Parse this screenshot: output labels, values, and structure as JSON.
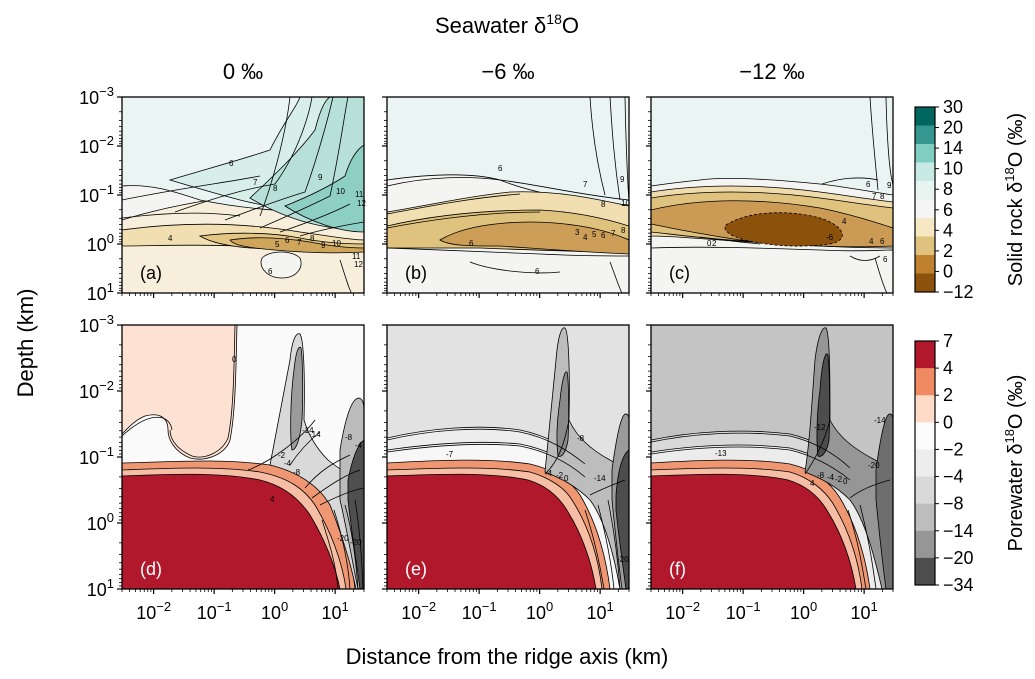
{
  "chart_data": {
    "type": "heatmap",
    "figure_title": "Seawater δ",
    "figure_title_sup": "18",
    "figure_title_tail": "O",
    "column_titles": [
      "0 ‰",
      "−6 ‰",
      "−12 ‰"
    ],
    "ylabel": "Depth (km)",
    "xlabel": "Distance from the ridge axis (km)",
    "x_scale": "log",
    "y_scale": "log",
    "y_inverted": true,
    "xlim": [
      0.003,
      30
    ],
    "ylim": [
      0.001,
      10
    ],
    "x_ticks": [
      0.01,
      0.1,
      1,
      10
    ],
    "x_tick_labels": [
      {
        "base": "10",
        "exp": "−2"
      },
      {
        "base": "10",
        "exp": "−1"
      },
      {
        "base": "10",
        "exp": "0"
      },
      {
        "base": "10",
        "exp": "1"
      }
    ],
    "y_ticks": [
      0.001,
      0.01,
      0.1,
      1,
      10
    ],
    "y_tick_labels": [
      {
        "base": "10",
        "exp": "−3"
      },
      {
        "base": "10",
        "exp": "−2"
      },
      {
        "base": "10",
        "exp": "−1"
      },
      {
        "base": "10",
        "exp": "0"
      },
      {
        "base": "10",
        "exp": "1"
      }
    ],
    "panels": [
      {
        "label": "(a)",
        "row": "solid",
        "seawater_d18O": 0,
        "contour_labels": [
          "6",
          "7",
          "8",
          "9",
          "10",
          "11",
          "12",
          "4",
          "5",
          "6",
          "7",
          "8",
          "9",
          "10",
          "11",
          "12",
          "6"
        ]
      },
      {
        "label": "(b)",
        "row": "solid",
        "seawater_d18O": -6,
        "contour_labels": [
          "6",
          "7",
          "8",
          "9",
          "10",
          "3",
          "4",
          "5",
          "6",
          "7",
          "8",
          "6",
          "6"
        ]
      },
      {
        "label": "(c)",
        "row": "solid",
        "seawater_d18O": -12,
        "contour_labels": [
          "6",
          "7",
          "8",
          "9",
          "-6",
          "4",
          "0",
          "2",
          "4",
          "6",
          "6"
        ]
      },
      {
        "label": "(d)",
        "row": "porewater",
        "seawater_d18O": 0,
        "contour_labels": [
          "0",
          "-2",
          "-4",
          "-8",
          "-14",
          "-14",
          "-20",
          "-20",
          "-8",
          "-4",
          "4"
        ]
      },
      {
        "label": "(e)",
        "row": "porewater",
        "seawater_d18O": -6,
        "contour_labels": [
          "-7",
          "-8",
          "-4",
          "-2",
          "0",
          "-14",
          "-20"
        ]
      },
      {
        "label": "(f)",
        "row": "porewater",
        "seawater_d18O": -12,
        "contour_labels": [
          "-13",
          "-12",
          "-14",
          "-20",
          "-8",
          "-4",
          "-2",
          "0",
          "4"
        ]
      }
    ],
    "colorbars": [
      {
        "label_pre": "Solid rock δ",
        "label_sup": "18",
        "label_post": "O (‰)",
        "ticks": [
          "30",
          "20",
          "14",
          "10",
          "8",
          "6",
          "4",
          "2",
          "0",
          "−12"
        ],
        "colors": [
          "#01665e",
          "#35978f",
          "#80cdc1",
          "#c7eae5",
          "#e8f4f2",
          "#f5f5f5",
          "#f6e8c3",
          "#dfc27d",
          "#bf812d",
          "#8c510a"
        ]
      },
      {
        "label_pre": "Porewater δ",
        "label_sup": "18",
        "label_post": "O (‰)",
        "ticks": [
          "7",
          "4",
          "2",
          "0",
          "−2",
          "−4",
          "−8",
          "−14",
          "−20",
          "−34"
        ],
        "colors": [
          "#b2182b",
          "#ef8a62",
          "#fddbc7",
          "#fbfbfb",
          "#ededed",
          "#d9d9d9",
          "#bdbdbd",
          "#969696",
          "#4d4d4d"
        ]
      }
    ]
  }
}
